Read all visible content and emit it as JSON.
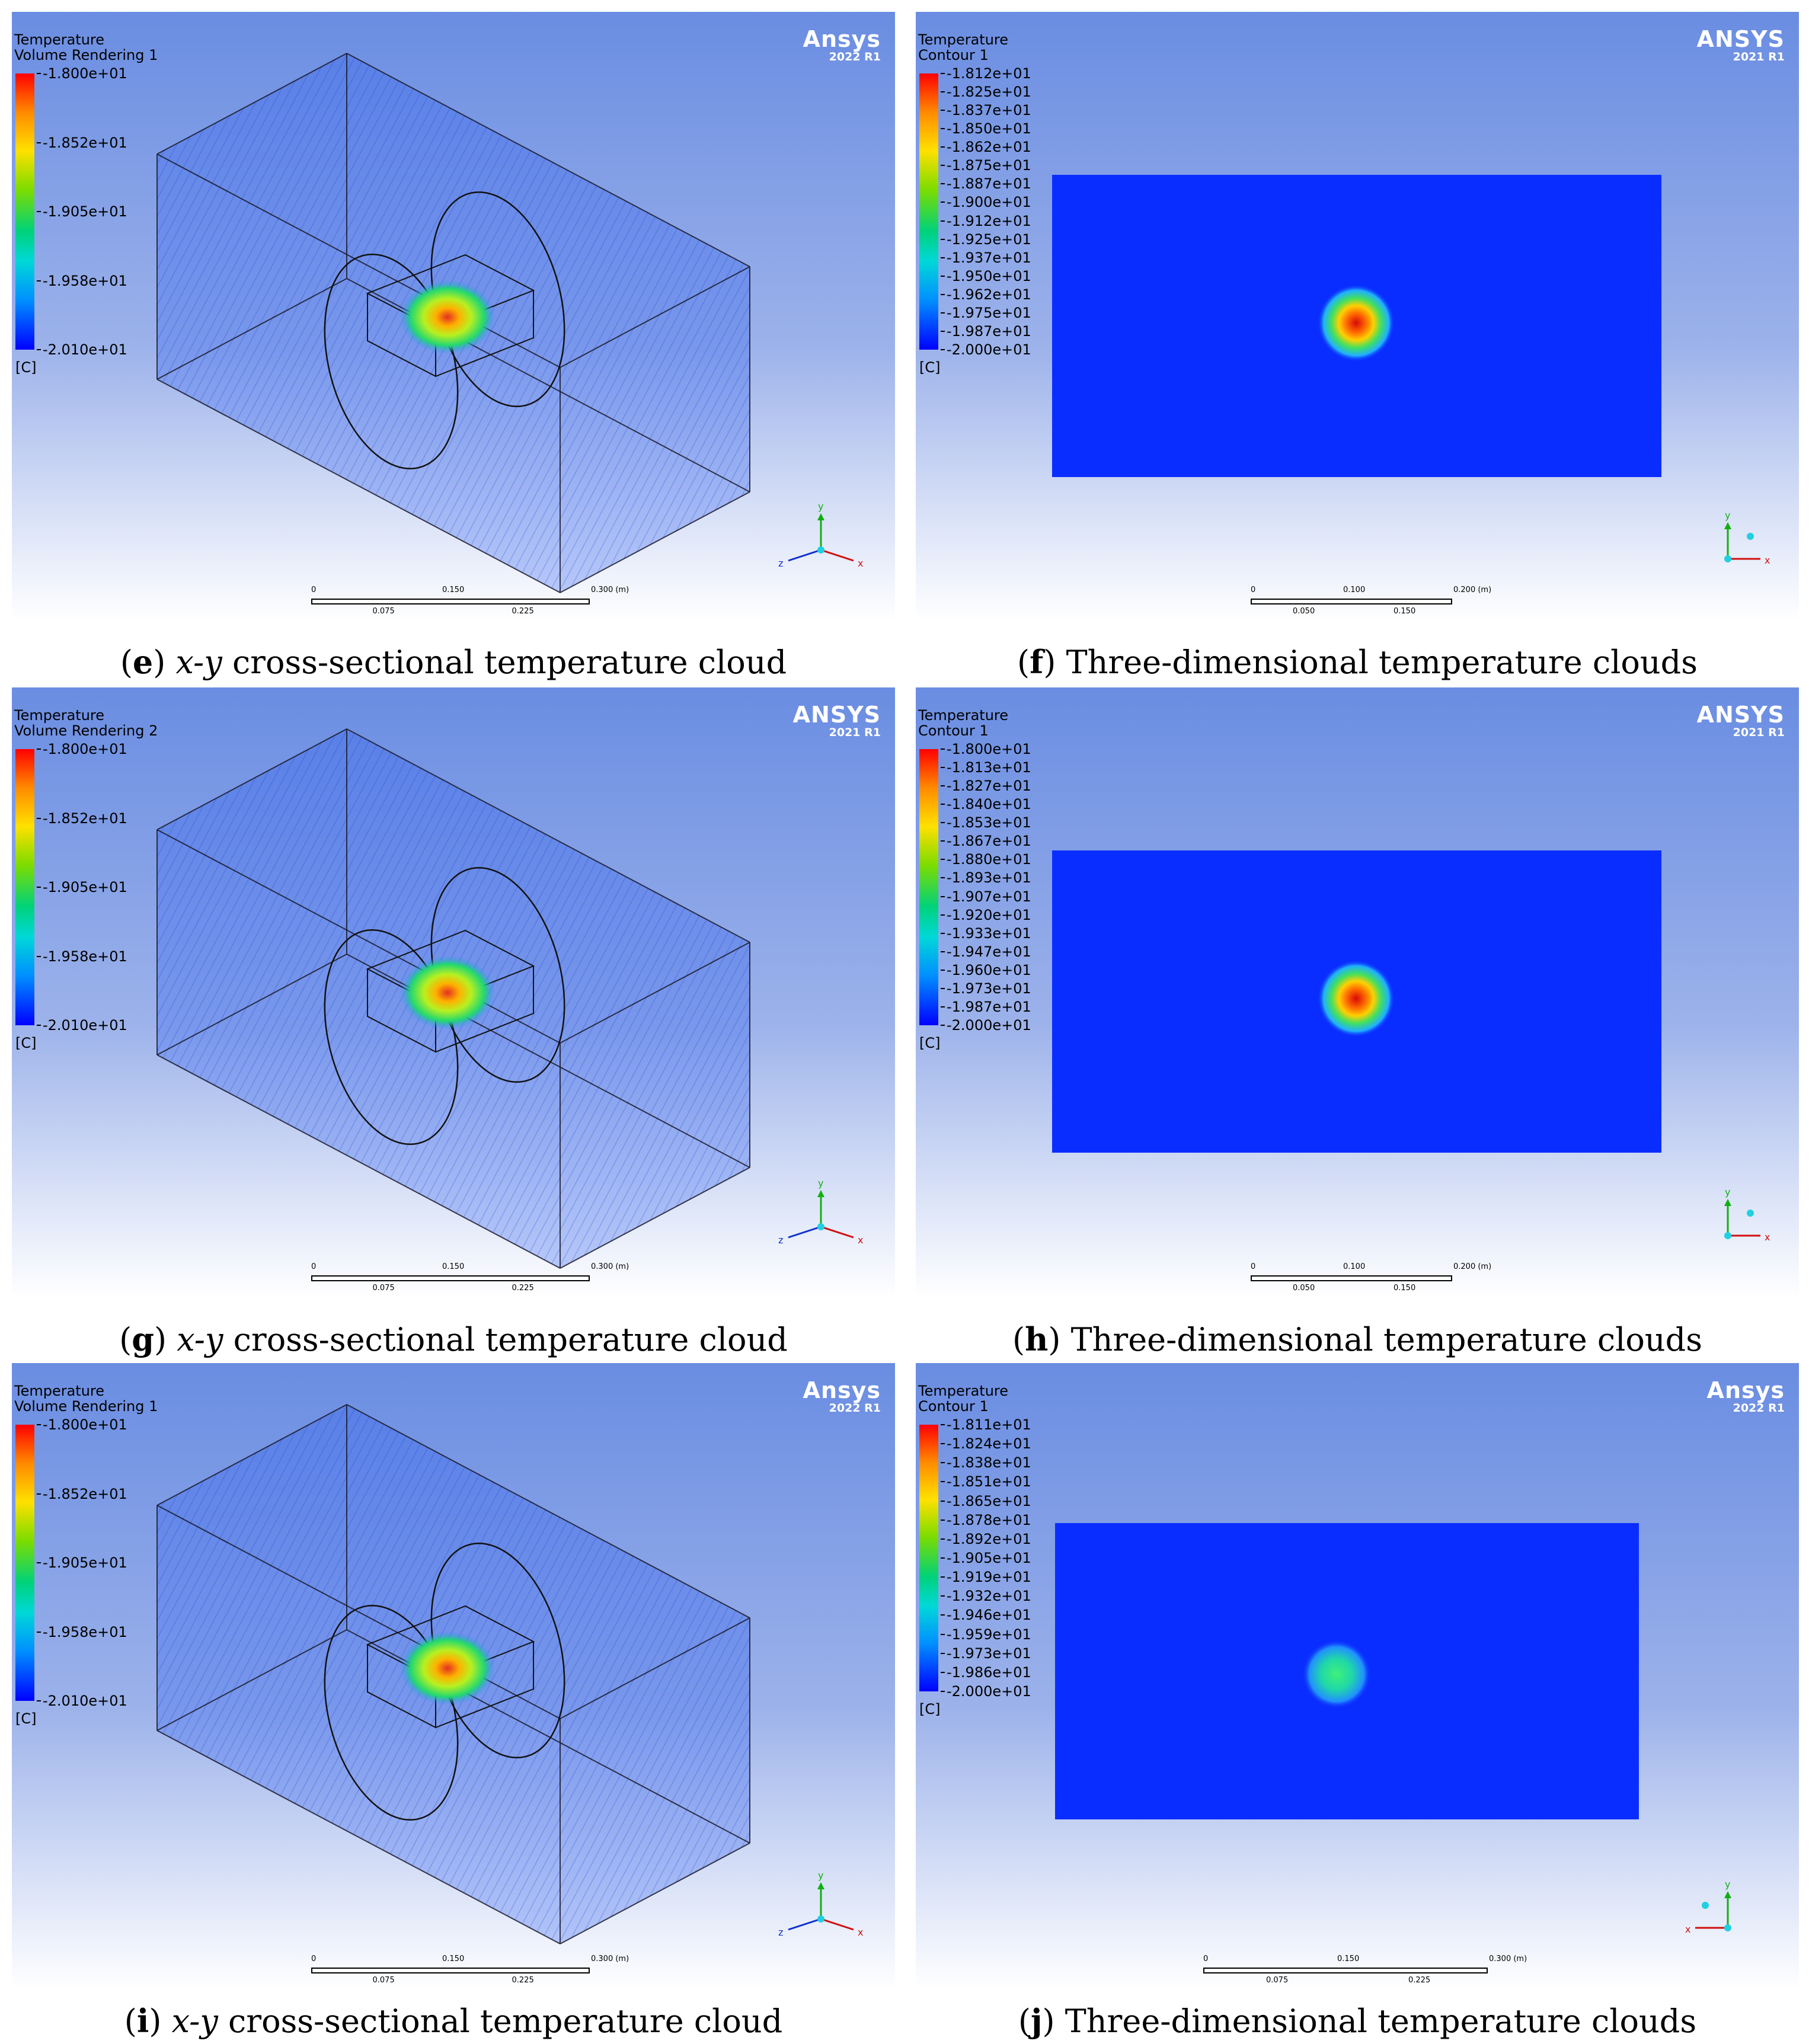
{
  "colors": {
    "frame_top": "#6a8de2",
    "frame_bottom": "#ffffff",
    "field_blue": "#0a2dff",
    "hotspot_red": "#e01010",
    "hotspot_green": "#27d96a"
  },
  "panels": [
    {
      "id": "e",
      "kind": "volume",
      "title": "Temperature",
      "subtitle": "Volume Rendering 1",
      "brand": "Ansys",
      "version": "2022 R1",
      "legend_ticks": [
        "-1.800e+01",
        "-1.852e+01",
        "-1.905e+01",
        "-1.958e+01",
        "-2.010e+01"
      ],
      "unit": "[C]",
      "scale_top": [
        "0",
        "0.150",
        "0.300 (m)"
      ],
      "scale_bottom": [
        "0.075",
        "0.225"
      ],
      "axes": {
        "up": "y",
        "left": "z",
        "right": "x"
      },
      "caption": {
        "letter": "e",
        "axis": "x-y",
        "text": "cross-sectional temperature cloud"
      }
    },
    {
      "id": "f",
      "kind": "contour",
      "title": "Temperature",
      "subtitle": "Contour 1",
      "brand": "ANSYS",
      "version": "2021 R1",
      "legend_ticks": [
        "-1.812e+01",
        "-1.825e+01",
        "-1.837e+01",
        "-1.850e+01",
        "-1.862e+01",
        "-1.875e+01",
        "-1.887e+01",
        "-1.900e+01",
        "-1.912e+01",
        "-1.925e+01",
        "-1.937e+01",
        "-1.950e+01",
        "-1.962e+01",
        "-1.975e+01",
        "-1.987e+01",
        "-2.000e+01"
      ],
      "unit": "[C]",
      "scale_top": [
        "0",
        "0.100",
        "0.200 (m)"
      ],
      "scale_bottom": [
        "0.050",
        "0.150"
      ],
      "axes": {
        "up": "y",
        "right": "x"
      },
      "hotspot": "red",
      "caption": {
        "letter": "f",
        "text": "Three-dimensional temperature clouds"
      }
    },
    {
      "id": "g",
      "kind": "volume",
      "title": "Temperature",
      "subtitle": "Volume Rendering 2",
      "brand": "ANSYS",
      "version": "2021 R1",
      "legend_ticks": [
        "-1.800e+01",
        "-1.852e+01",
        "-1.905e+01",
        "-1.958e+01",
        "-2.010e+01"
      ],
      "unit": "[C]",
      "scale_top": [
        "0",
        "0.150",
        "0.300 (m)"
      ],
      "scale_bottom": [
        "0.075",
        "0.225"
      ],
      "axes": {
        "up": "y",
        "left": "z",
        "right": "x"
      },
      "caption": {
        "letter": "g",
        "axis": "x-y",
        "text": "cross-sectional temperature cloud"
      }
    },
    {
      "id": "h",
      "kind": "contour",
      "title": "Temperature",
      "subtitle": "Contour 1",
      "brand": "ANSYS",
      "version": "2021 R1",
      "legend_ticks": [
        "-1.800e+01",
        "-1.813e+01",
        "-1.827e+01",
        "-1.840e+01",
        "-1.853e+01",
        "-1.867e+01",
        "-1.880e+01",
        "-1.893e+01",
        "-1.907e+01",
        "-1.920e+01",
        "-1.933e+01",
        "-1.947e+01",
        "-1.960e+01",
        "-1.973e+01",
        "-1.987e+01",
        "-2.000e+01"
      ],
      "unit": "[C]",
      "scale_top": [
        "0",
        "0.100",
        "0.200 (m)"
      ],
      "scale_bottom": [
        "0.050",
        "0.150"
      ],
      "axes": {
        "up": "y",
        "right": "x"
      },
      "hotspot": "red",
      "caption": {
        "letter": "h",
        "text": "Three-dimensional temperature clouds"
      }
    },
    {
      "id": "i",
      "kind": "volume",
      "title": "Temperature",
      "subtitle": "Volume Rendering 1",
      "brand": "Ansys",
      "version": "2022 R1",
      "legend_ticks": [
        "-1.800e+01",
        "-1.852e+01",
        "-1.905e+01",
        "-1.958e+01",
        "-2.010e+01"
      ],
      "unit": "[C]",
      "scale_top": [
        "0",
        "0.150",
        "0.300 (m)"
      ],
      "scale_bottom": [
        "0.075",
        "0.225"
      ],
      "axes": {
        "up": "y",
        "left": "z",
        "right": "x"
      },
      "caption": {
        "letter": "i",
        "axis": "x-y",
        "text": "cross-sectional temperature cloud"
      }
    },
    {
      "id": "j",
      "kind": "contour",
      "title": "Temperature",
      "subtitle": "Contour 1",
      "brand": "Ansys",
      "version": "2022 R1",
      "legend_ticks": [
        "-1.811e+01",
        "-1.824e+01",
        "-1.838e+01",
        "-1.851e+01",
        "-1.865e+01",
        "-1.878e+01",
        "-1.892e+01",
        "-1.905e+01",
        "-1.919e+01",
        "-1.932e+01",
        "-1.946e+01",
        "-1.959e+01",
        "-1.973e+01",
        "-1.986e+01",
        "-2.000e+01"
      ],
      "unit": "[C]",
      "scale_top": [
        "0",
        "0.150",
        "0.300 (m)"
      ],
      "scale_bottom": [
        "0.075",
        "0.225"
      ],
      "axes": {
        "up": "y",
        "left": "x"
      },
      "hotspot": "green",
      "caption": {
        "letter": "j",
        "text": "Three-dimensional temperature clouds"
      }
    }
  ]
}
